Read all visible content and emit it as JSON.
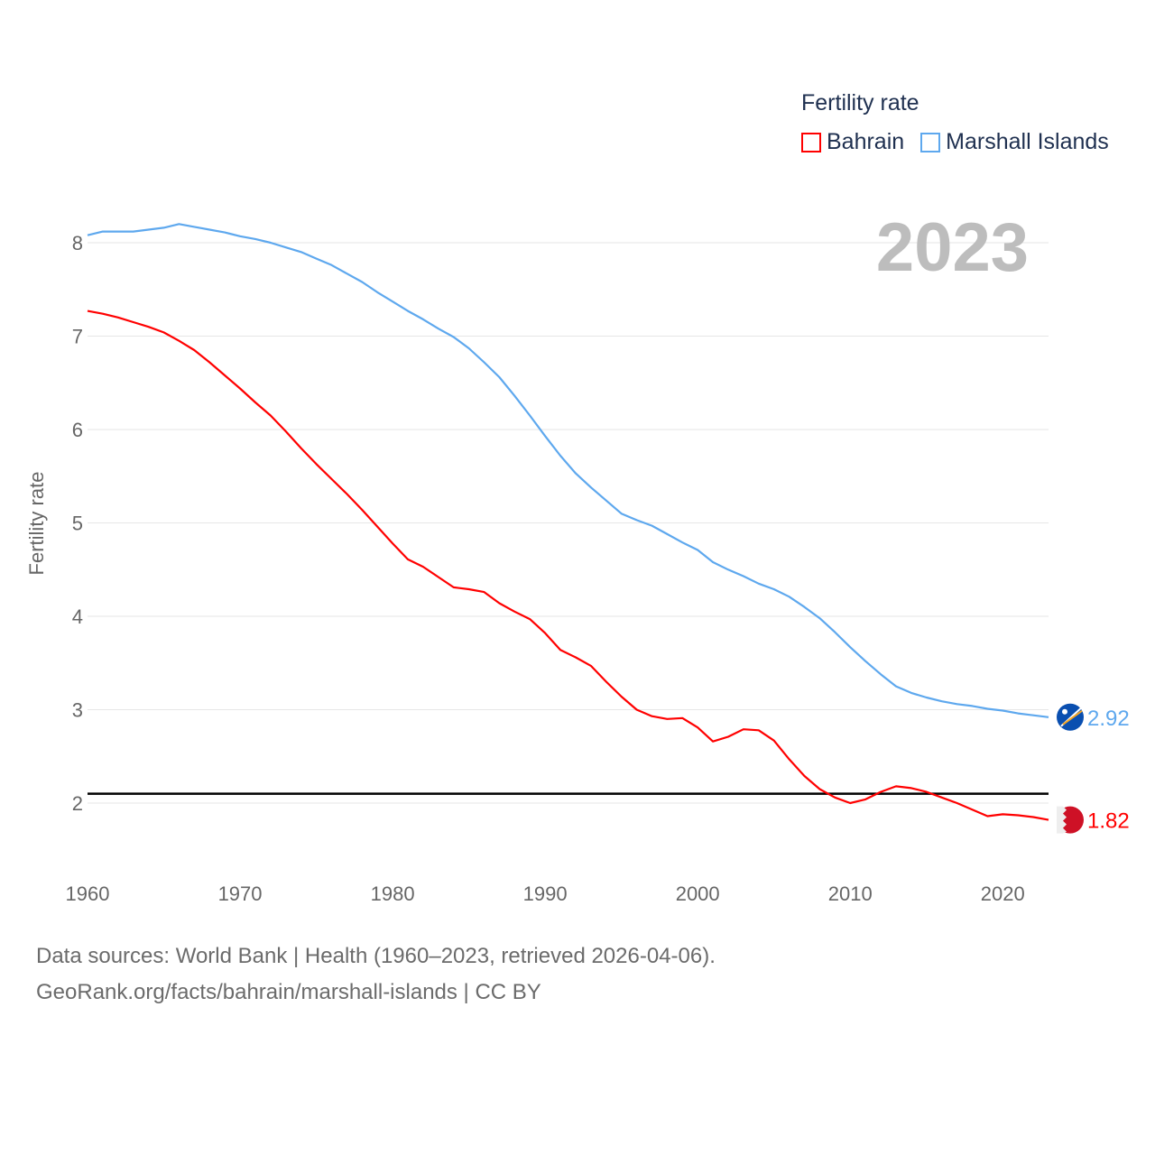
{
  "chart_data": {
    "type": "line",
    "title": "Fertility rate",
    "ylabel": "Fertility rate",
    "xlabel": "",
    "year_label": "2023",
    "xlim": [
      1960,
      2023
    ],
    "ylim": [
      1.5,
      8.2
    ],
    "x_ticks": [
      1960,
      1970,
      1980,
      1990,
      2000,
      2010,
      2020
    ],
    "y_ticks": [
      2,
      3,
      4,
      5,
      6,
      7,
      8
    ],
    "grid": true,
    "legend_position": "top-right",
    "reference_line": 2.1,
    "x_start": 1960,
    "series": [
      {
        "name": "Bahrain",
        "color": "#ff0000",
        "end_label": "1.82",
        "values": [
          7.27,
          7.24,
          7.2,
          7.15,
          7.1,
          7.04,
          6.95,
          6.85,
          6.72,
          6.58,
          6.44,
          6.29,
          6.15,
          5.98,
          5.8,
          5.63,
          5.47,
          5.31,
          5.14,
          4.96,
          4.78,
          4.61,
          4.53,
          4.42,
          4.31,
          4.29,
          4.26,
          4.14,
          4.05,
          3.97,
          3.82,
          3.64,
          3.56,
          3.47,
          3.3,
          3.14,
          3.0,
          2.93,
          2.9,
          2.91,
          2.81,
          2.66,
          2.71,
          2.79,
          2.78,
          2.67,
          2.47,
          2.29,
          2.15,
          2.06,
          2.0,
          2.04,
          2.12,
          2.18,
          2.16,
          2.12,
          2.06,
          2.0,
          1.93,
          1.86,
          1.88,
          1.87,
          1.85,
          1.82
        ]
      },
      {
        "name": "Marshall Islands",
        "color": "#5ea8ee",
        "end_label": "2.92",
        "values": [
          8.08,
          8.12,
          8.12,
          8.12,
          8.14,
          8.16,
          8.2,
          8.17,
          8.14,
          8.11,
          8.07,
          8.04,
          8.0,
          7.95,
          7.9,
          7.83,
          7.76,
          7.67,
          7.58,
          7.47,
          7.37,
          7.27,
          7.18,
          7.08,
          6.99,
          6.87,
          6.72,
          6.56,
          6.36,
          6.15,
          5.93,
          5.72,
          5.53,
          5.38,
          5.24,
          5.1,
          5.03,
          4.97,
          4.88,
          4.79,
          4.71,
          4.58,
          4.5,
          4.43,
          4.35,
          4.29,
          4.21,
          4.1,
          3.98,
          3.83,
          3.67,
          3.52,
          3.38,
          3.25,
          3.18,
          3.13,
          3.09,
          3.06,
          3.04,
          3.01,
          2.99,
          2.96,
          2.94,
          2.92
        ]
      }
    ]
  },
  "source_line1": "Data sources: World Bank | Health (1960–2023, retrieved 2026-04-06).",
  "source_line2": "GeoRank.org/facts/bahrain/marshall-islands | CC BY"
}
